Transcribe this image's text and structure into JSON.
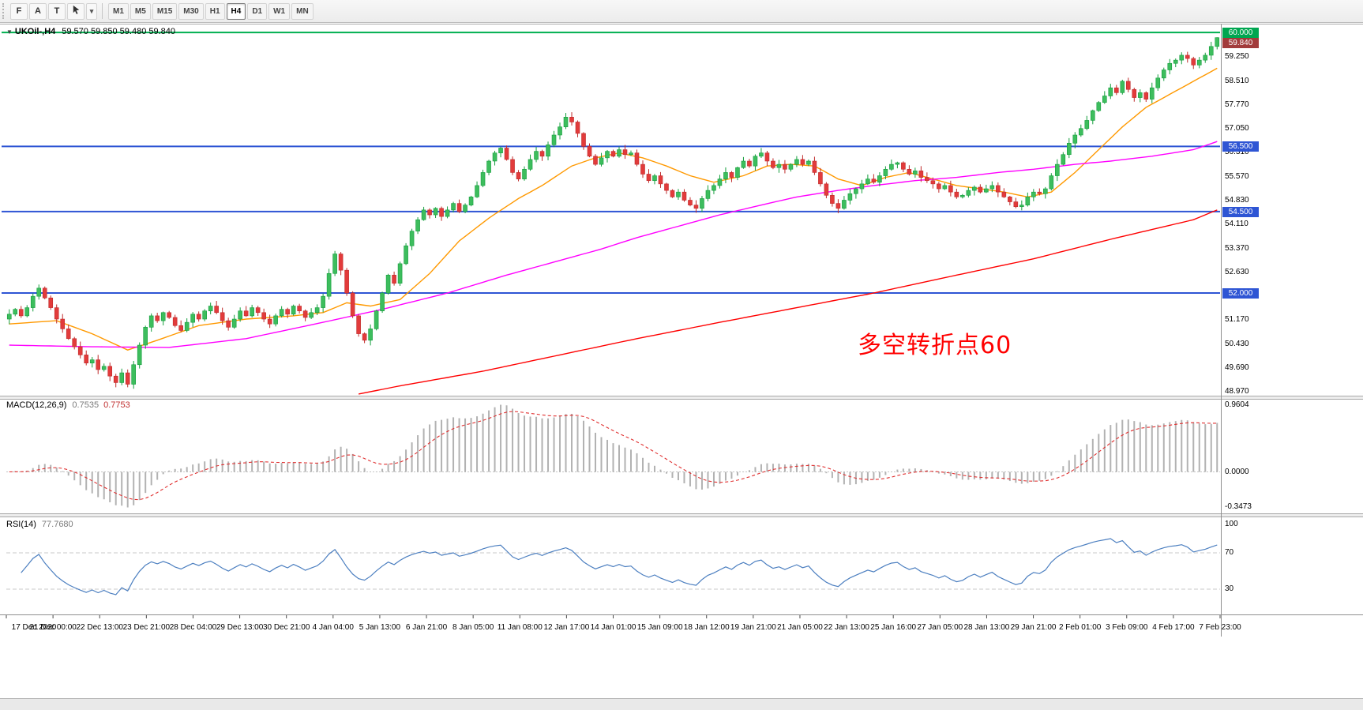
{
  "toolbar": {
    "left_buttons": [
      {
        "label": "F"
      },
      {
        "label": "A"
      },
      {
        "label": "T"
      }
    ],
    "caret_label": "▾",
    "timeframes": [
      "M1",
      "M5",
      "M15",
      "M30",
      "H1",
      "H4",
      "D1",
      "W1",
      "MN"
    ],
    "active_timeframe": "H4"
  },
  "chart": {
    "header": {
      "collapse_icon": "▼",
      "symbol_title": "UKOil-,H4",
      "ohlc": "59.570 59.850 59.480 59.840"
    },
    "annotation": {
      "text": "多空转折点60",
      "color": "#ff0000"
    }
  },
  "chart_data": {
    "type": "candlestick",
    "symbol": "UKOil-",
    "timeframe": "H4",
    "first_open": 51.2,
    "closes": [
      51.35,
      51.5,
      51.3,
      51.55,
      51.9,
      52.15,
      51.85,
      51.55,
      51.2,
      50.9,
      50.6,
      50.35,
      50.1,
      49.85,
      49.95,
      49.65,
      49.75,
      49.45,
      49.25,
      49.55,
      49.2,
      49.8,
      50.4,
      50.95,
      51.3,
      51.15,
      51.4,
      51.25,
      51.0,
      50.85,
      51.1,
      51.35,
      51.2,
      51.45,
      51.6,
      51.4,
      51.15,
      50.95,
      51.2,
      51.45,
      51.3,
      51.55,
      51.4,
      51.2,
      51.05,
      51.3,
      51.5,
      51.35,
      51.6,
      51.45,
      51.25,
      51.4,
      51.55,
      51.9,
      52.6,
      53.2,
      52.7,
      52.0,
      51.3,
      50.75,
      50.55,
      50.9,
      51.45,
      52.0,
      52.55,
      52.3,
      52.9,
      53.45,
      53.9,
      54.25,
      54.55,
      54.4,
      54.6,
      54.35,
      54.55,
      54.75,
      54.5,
      54.7,
      54.95,
      55.3,
      55.7,
      56.05,
      56.3,
      56.45,
      56.1,
      55.7,
      55.5,
      55.8,
      56.1,
      56.35,
      56.2,
      56.55,
      56.85,
      57.1,
      57.4,
      57.25,
      56.9,
      56.5,
      56.2,
      55.95,
      56.15,
      56.35,
      56.2,
      56.4,
      56.25,
      56.3,
      55.95,
      55.65,
      55.45,
      55.6,
      55.35,
      55.15,
      54.95,
      55.1,
      54.85,
      54.7,
      54.6,
      54.9,
      55.15,
      55.3,
      55.5,
      55.7,
      55.55,
      55.85,
      56.05,
      55.9,
      56.2,
      56.3,
      56.05,
      55.85,
      55.95,
      55.8,
      55.95,
      56.1,
      55.95,
      56.05,
      55.7,
      55.35,
      55.0,
      54.75,
      54.6,
      54.85,
      55.05,
      55.2,
      55.35,
      55.5,
      55.4,
      55.6,
      55.8,
      55.95,
      56.0,
      55.8,
      55.65,
      55.75,
      55.55,
      55.45,
      55.35,
      55.2,
      55.3,
      55.1,
      54.95,
      55.0,
      55.15,
      55.25,
      55.1,
      55.2,
      55.3,
      55.1,
      54.95,
      54.8,
      54.65,
      54.7,
      54.95,
      55.1,
      55.05,
      55.2,
      55.6,
      55.95,
      56.25,
      56.6,
      56.85,
      57.05,
      57.3,
      57.6,
      57.85,
      58.05,
      58.3,
      58.15,
      58.5,
      58.25,
      58.0,
      58.15,
      57.95,
      58.3,
      58.6,
      58.85,
      59.05,
      59.15,
      59.3,
      59.2,
      59.0,
      59.15,
      59.3,
      59.57,
      59.84
    ],
    "last_bar": {
      "open": 59.57,
      "high": 59.85,
      "low": 59.48,
      "close": 59.84
    },
    "colors": {
      "bull": "#3dbd5d",
      "bull_stroke": "#149e3c",
      "bear": "#e23b3b",
      "bear_stroke": "#bf2b2b"
    },
    "x_labels": [
      "17 Dec 2020",
      "21 Dec 00:00",
      "22 Dec 13:00",
      "23 Dec 21:00",
      "28 Dec 04:00",
      "29 Dec 13:00",
      "30 Dec 21:00",
      "4 Jan 04:00",
      "5 Jan 13:00",
      "6 Jan 21:00",
      "8 Jan 05:00",
      "11 Jan 08:00",
      "12 Jan 17:00",
      "14 Jan 01:00",
      "15 Jan 09:00",
      "18 Jan 12:00",
      "19 Jan 21:00",
      "21 Jan 05:00",
      "22 Jan 13:00",
      "25 Jan 16:00",
      "27 Jan 05:00",
      "28 Jan 13:00",
      "29 Jan 21:00",
      "2 Feb 01:00",
      "3 Feb 09:00",
      "4 Feb 17:00",
      "7 Feb 23:00"
    ],
    "y_ticks": [
      59.25,
      58.51,
      57.77,
      57.05,
      56.31,
      55.57,
      54.83,
      54.11,
      53.37,
      52.63,
      51.91,
      51.17,
      50.43,
      49.69,
      48.97
    ],
    "horizontal_lines": [
      {
        "price": 60.0,
        "color": "#00b050",
        "width": 2
      },
      {
        "price": 56.5,
        "color": "#2e55d4",
        "width": 2
      },
      {
        "price": 54.5,
        "color": "#2e55d4",
        "width": 2
      },
      {
        "price": 52.0,
        "color": "#2e55d4",
        "width": 2
      }
    ],
    "price_badges": [
      {
        "label": "60.000",
        "price": 60.0,
        "color": "#00a650",
        "dy": 0
      },
      {
        "label": "59.840",
        "price": 59.84,
        "color": "#a23b3b",
        "dy": 6
      },
      {
        "label": "56.500",
        "price": 56.5,
        "color": "#2e55d4",
        "dy": 0
      },
      {
        "label": "54.500",
        "price": 54.5,
        "color": "#2e55d4",
        "dy": 0
      },
      {
        "label": "52.000",
        "price": 52.0,
        "color": "#2e55d4",
        "dy": 0
      }
    ],
    "moving_averages": [
      {
        "name": "ma-fast",
        "color": "#ff9900",
        "points": [
          [
            0,
            51.05
          ],
          [
            8,
            51.15
          ],
          [
            14,
            50.75
          ],
          [
            20,
            50.25
          ],
          [
            25,
            50.55
          ],
          [
            32,
            51.0
          ],
          [
            40,
            51.2
          ],
          [
            48,
            51.3
          ],
          [
            53,
            51.4
          ],
          [
            57,
            51.7
          ],
          [
            61,
            51.6
          ],
          [
            66,
            51.8
          ],
          [
            71,
            52.6
          ],
          [
            76,
            53.6
          ],
          [
            81,
            54.3
          ],
          [
            86,
            54.9
          ],
          [
            90,
            55.3
          ],
          [
            95,
            55.9
          ],
          [
            99,
            56.15
          ],
          [
            103,
            56.3
          ],
          [
            107,
            56.15
          ],
          [
            111,
            55.9
          ],
          [
            115,
            55.6
          ],
          [
            119,
            55.4
          ],
          [
            124,
            55.6
          ],
          [
            128,
            55.9
          ],
          [
            132,
            55.95
          ],
          [
            136,
            55.9
          ],
          [
            140,
            55.5
          ],
          [
            144,
            55.3
          ],
          [
            148,
            55.55
          ],
          [
            152,
            55.7
          ],
          [
            156,
            55.5
          ],
          [
            160,
            55.3
          ],
          [
            164,
            55.2
          ],
          [
            168,
            55.1
          ],
          [
            172,
            54.95
          ],
          [
            176,
            55.1
          ],
          [
            180,
            55.7
          ],
          [
            184,
            56.4
          ],
          [
            188,
            57.1
          ],
          [
            192,
            57.7
          ],
          [
            196,
            58.1
          ],
          [
            200,
            58.5
          ],
          [
            204,
            58.9
          ]
        ]
      },
      {
        "name": "ma-medium",
        "color": "#ff00ff",
        "points": [
          [
            0,
            50.4
          ],
          [
            14,
            50.35
          ],
          [
            27,
            50.33
          ],
          [
            40,
            50.6
          ],
          [
            53,
            51.1
          ],
          [
            63,
            51.5
          ],
          [
            74,
            52.0
          ],
          [
            84,
            52.55
          ],
          [
            93,
            53.0
          ],
          [
            100,
            53.35
          ],
          [
            106,
            53.7
          ],
          [
            113,
            54.05
          ],
          [
            120,
            54.4
          ],
          [
            127,
            54.7
          ],
          [
            133,
            54.95
          ],
          [
            140,
            55.15
          ],
          [
            146,
            55.3
          ],
          [
            153,
            55.45
          ],
          [
            160,
            55.55
          ],
          [
            167,
            55.7
          ],
          [
            173,
            55.8
          ],
          [
            180,
            55.95
          ],
          [
            186,
            56.05
          ],
          [
            193,
            56.2
          ],
          [
            200,
            56.4
          ],
          [
            204,
            56.65
          ]
        ]
      },
      {
        "name": "ma-slow",
        "color": "#ff0000",
        "points": [
          [
            59,
            48.9
          ],
          [
            66,
            49.15
          ],
          [
            80,
            49.6
          ],
          [
            93,
            50.1
          ],
          [
            106,
            50.6
          ],
          [
            120,
            51.1
          ],
          [
            133,
            51.55
          ],
          [
            146,
            52.0
          ],
          [
            160,
            52.55
          ],
          [
            173,
            53.05
          ],
          [
            186,
            53.65
          ],
          [
            200,
            54.25
          ],
          [
            204,
            54.55
          ]
        ]
      }
    ],
    "indicators": [
      {
        "name": "MACD(12,26,9)",
        "main_value": "0.7535",
        "signal_value": "0.7753",
        "scale": [
          "0.9604",
          "0.0000",
          "-0.3473"
        ],
        "histogram_color": "#b2b2b2",
        "signal_color": "#e03030"
      },
      {
        "name": "RSI(14)",
        "value": "77.7680",
        "scale": [
          "100",
          "70",
          "30"
        ],
        "levels": [
          70,
          30
        ],
        "line_color": "#4c7fc0"
      }
    ]
  }
}
